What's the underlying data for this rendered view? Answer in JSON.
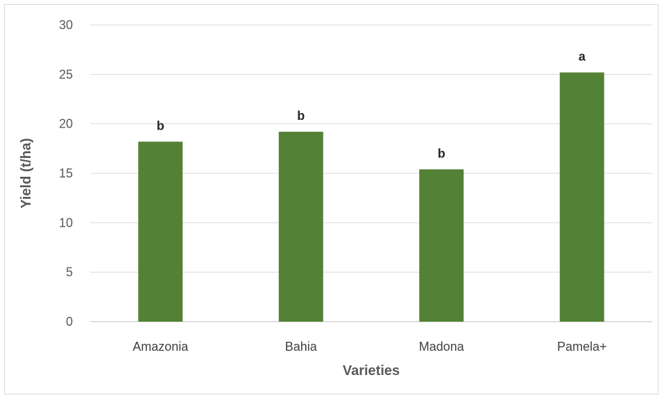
{
  "chart_data": {
    "type": "bar",
    "title": "",
    "xlabel": "Varieties",
    "ylabel": "Yield (t/ha)",
    "ylim": [
      0,
      30
    ],
    "yticks": [
      "0",
      "5",
      "10",
      "15",
      "20",
      "25",
      "30"
    ],
    "categories": [
      "Amazonia",
      "Bahia",
      "Madona",
      "Pamela+"
    ],
    "values": [
      18.2,
      19.2,
      15.4,
      25.2
    ],
    "annotations": [
      "b",
      "b",
      "b",
      "a"
    ],
    "grid": true,
    "legend": "none",
    "bar_color": "#538135"
  }
}
